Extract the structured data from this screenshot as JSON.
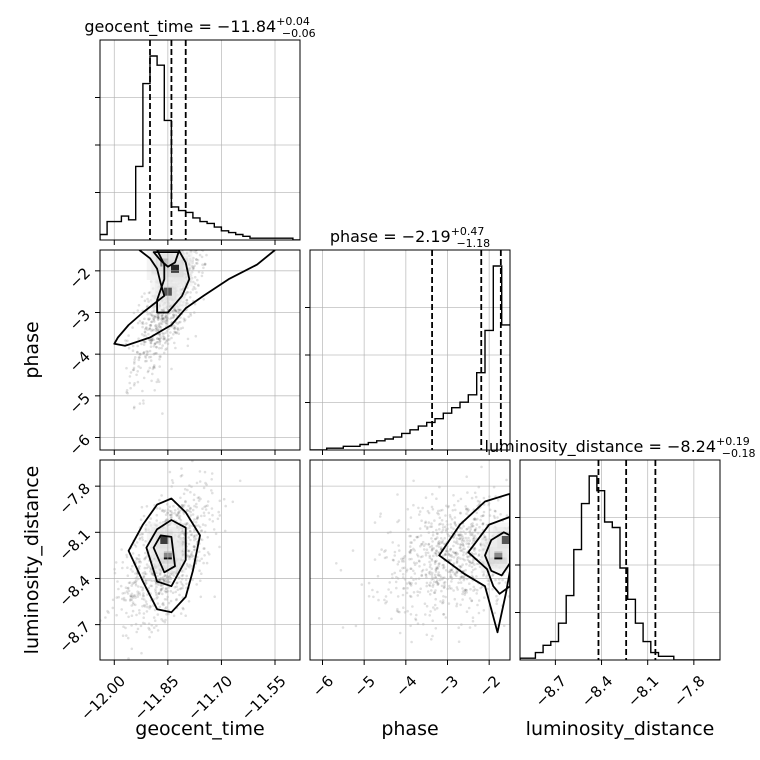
{
  "chart_data": {
    "type": "corner",
    "parameters": [
      "geocent_time",
      "phase",
      "luminosity_distance"
    ],
    "titles": {
      "geocent_time": {
        "name": "geocent_time",
        "median": "−11.84",
        "plus": "+0.04",
        "minus": "−0.06"
      },
      "phase": {
        "name": "phase",
        "median": "−2.19",
        "plus": "+0.47",
        "minus": "−1.18"
      },
      "luminosity_distance": {
        "name": "luminosity_distance",
        "median": "−8.24",
        "plus": "+0.19",
        "minus": "−0.18"
      }
    },
    "axis_labels": {
      "geocent_time": "geocent_time",
      "phase": "phase",
      "luminosity_distance": "luminosity_distance"
    },
    "ranges": {
      "geocent_time": [
        -12.04,
        -11.48
      ],
      "phase": [
        -6.3,
        -1.5
      ],
      "luminosity_distance": [
        -8.93,
        -7.63
      ]
    },
    "ticks": {
      "geocent_time": {
        "values": [
          -12.0,
          -11.85,
          -11.7,
          -11.55
        ],
        "labels": [
          "−12.00",
          "−11.85",
          "−11.70",
          "−11.55"
        ]
      },
      "phase": {
        "values": [
          -6,
          -5,
          -4,
          -3,
          -2
        ],
        "labels": [
          "−6",
          "−5",
          "−4",
          "−3",
          "−2"
        ]
      },
      "luminosity_distance": {
        "values": [
          -8.7,
          -8.4,
          -8.1,
          -7.8
        ],
        "labels": [
          "−8.7",
          "−8.4",
          "−8.1",
          "−7.8"
        ]
      }
    },
    "quantiles": {
      "geocent_time": [
        -11.9,
        -11.84,
        -11.8
      ],
      "phase": [
        -3.37,
        -2.19,
        -1.72
      ],
      "luminosity_distance": [
        -8.42,
        -8.24,
        -8.05
      ]
    },
    "histograms": {
      "geocent_time": {
        "start": -12.04,
        "step": 0.02,
        "counts": [
          0.03,
          0.1,
          0.1,
          0.13,
          0.11,
          0.4,
          0.85,
          1.0,
          0.95,
          0.65,
          0.18,
          0.16,
          0.15,
          0.12,
          0.1,
          0.09,
          0.07,
          0.05,
          0.04,
          0.03,
          0.02,
          0.01,
          0.01,
          0.01,
          0.01,
          0.01,
          0.01,
          0.0
        ]
      },
      "phase": {
        "start": -6.3,
        "step": 0.2,
        "counts": [
          0.0,
          0.0,
          0.01,
          0.01,
          0.02,
          0.02,
          0.03,
          0.04,
          0.05,
          0.06,
          0.07,
          0.09,
          0.11,
          0.13,
          0.15,
          0.17,
          0.2,
          0.23,
          0.26,
          0.3,
          0.42,
          0.65,
          1.0,
          0.68
        ]
      },
      "luminosity_distance": {
        "start": -8.93,
        "step": 0.05,
        "counts": [
          0.01,
          0.01,
          0.04,
          0.08,
          0.1,
          0.2,
          0.35,
          0.6,
          0.85,
          1.0,
          0.92,
          0.75,
          0.72,
          0.5,
          0.33,
          0.2,
          0.1,
          0.04,
          0.02,
          0.02,
          0.0,
          0.0,
          0.0,
          0.0,
          0.0,
          0.0
        ]
      }
    },
    "density_2d": [
      {
        "x": "geocent_time",
        "y": "phase",
        "contours": [
          [
            [
              -11.93,
              -1.5
            ],
            [
              -11.9,
              -1.7
            ],
            [
              -11.88,
              -1.95
            ],
            [
              -11.87,
              -2.3
            ],
            [
              -11.86,
              -2.6
            ],
            [
              -11.92,
              -3.0
            ],
            [
              -11.96,
              -3.3
            ],
            [
              -11.99,
              -3.6
            ],
            [
              -12.0,
              -3.75
            ],
            [
              -11.97,
              -3.8
            ],
            [
              -11.9,
              -3.6
            ],
            [
              -11.84,
              -3.3
            ],
            [
              -11.8,
              -2.9
            ],
            [
              -11.75,
              -2.6
            ],
            [
              -11.68,
              -2.2
            ],
            [
              -11.6,
              -1.85
            ],
            [
              -11.55,
              -1.5
            ]
          ],
          [
            [
              -11.88,
              -1.5
            ],
            [
              -11.86,
              -1.85
            ],
            [
              -11.86,
              -2.2
            ],
            [
              -11.88,
              -2.7
            ],
            [
              -11.88,
              -3.0
            ],
            [
              -11.85,
              -3.0
            ],
            [
              -11.81,
              -2.6
            ],
            [
              -11.79,
              -2.2
            ],
            [
              -11.8,
              -1.8
            ],
            [
              -11.82,
              -1.5
            ]
          ],
          [
            [
              -11.89,
              -1.55
            ],
            [
              -11.87,
              -1.75
            ],
            [
              -11.85,
              -1.9
            ],
            [
              -11.83,
              -1.8
            ],
            [
              -11.82,
              -1.55
            ]
          ]
        ],
        "peaks": [
          [
            -11.86,
            -1.8,
            1.0
          ],
          [
            -11.85,
            -2.5,
            0.7
          ],
          [
            -11.83,
            -1.95,
            0.9
          ]
        ],
        "scatter_cov": [
          [
            0.0025,
            0.035
          ],
          [
            0.035,
            0.9
          ]
        ],
        "scatter_center": [
          -11.84,
          -2.6
        ]
      },
      {
        "x": "geocent_time",
        "y": "luminosity_distance",
        "contours": [
          [
            [
              -11.96,
              -8.22
            ],
            [
              -11.92,
              -8.05
            ],
            [
              -11.88,
              -7.92
            ],
            [
              -11.84,
              -7.88
            ],
            [
              -11.8,
              -7.97
            ],
            [
              -11.76,
              -8.12
            ],
            [
              -11.78,
              -8.35
            ],
            [
              -11.8,
              -8.52
            ],
            [
              -11.84,
              -8.62
            ],
            [
              -11.88,
              -8.6
            ],
            [
              -11.92,
              -8.42
            ]
          ],
          [
            [
              -11.91,
              -8.2
            ],
            [
              -11.88,
              -8.08
            ],
            [
              -11.84,
              -8.02
            ],
            [
              -11.8,
              -8.07
            ],
            [
              -11.8,
              -8.28
            ],
            [
              -11.84,
              -8.45
            ],
            [
              -11.88,
              -8.42
            ]
          ],
          [
            [
              -11.89,
              -8.2
            ],
            [
              -11.87,
              -8.12
            ],
            [
              -11.84,
              -8.13
            ],
            [
              -11.83,
              -8.32
            ],
            [
              -11.86,
              -8.36
            ]
          ]
        ],
        "peaks": [
          [
            -11.85,
            -8.25,
            1.0
          ],
          [
            -11.86,
            -8.15,
            0.8
          ]
        ],
        "scatter_cov": [
          [
            0.004,
            0.008
          ],
          [
            0.008,
            0.05
          ]
        ],
        "scatter_center": [
          -11.85,
          -8.25
        ]
      },
      {
        "x": "phase",
        "y": "luminosity_distance",
        "contours": [
          [
            [
              -1.5,
              -7.85
            ],
            [
              -2.1,
              -7.9
            ],
            [
              -2.7,
              -8.05
            ],
            [
              -3.2,
              -8.25
            ],
            [
              -2.6,
              -8.37
            ],
            [
              -2.1,
              -8.45
            ],
            [
              -1.95,
              -8.6
            ],
            [
              -1.8,
              -8.75
            ],
            [
              -1.6,
              -8.5
            ],
            [
              -1.5,
              -8.35
            ]
          ],
          [
            [
              -1.5,
              -8.0
            ],
            [
              -2.0,
              -8.05
            ],
            [
              -2.5,
              -8.23
            ],
            [
              -2.05,
              -8.34
            ],
            [
              -1.9,
              -8.45
            ],
            [
              -1.75,
              -8.5
            ],
            [
              -1.5,
              -8.45
            ]
          ],
          [
            [
              -1.65,
              -8.1
            ],
            [
              -1.95,
              -8.15
            ],
            [
              -2.1,
              -8.25
            ],
            [
              -1.95,
              -8.35
            ],
            [
              -1.7,
              -8.38
            ],
            [
              -1.5,
              -8.3
            ],
            [
              -1.5,
              -8.12
            ]
          ]
        ],
        "peaks": [
          [
            -1.78,
            -8.25,
            1.0
          ],
          [
            -1.6,
            -8.15,
            0.7
          ]
        ],
        "scatter_cov": [
          [
            0.8,
            0.04
          ],
          [
            0.04,
            0.04
          ]
        ],
        "scatter_center": [
          -2.8,
          -8.25
        ]
      }
    ],
    "grid": true
  }
}
